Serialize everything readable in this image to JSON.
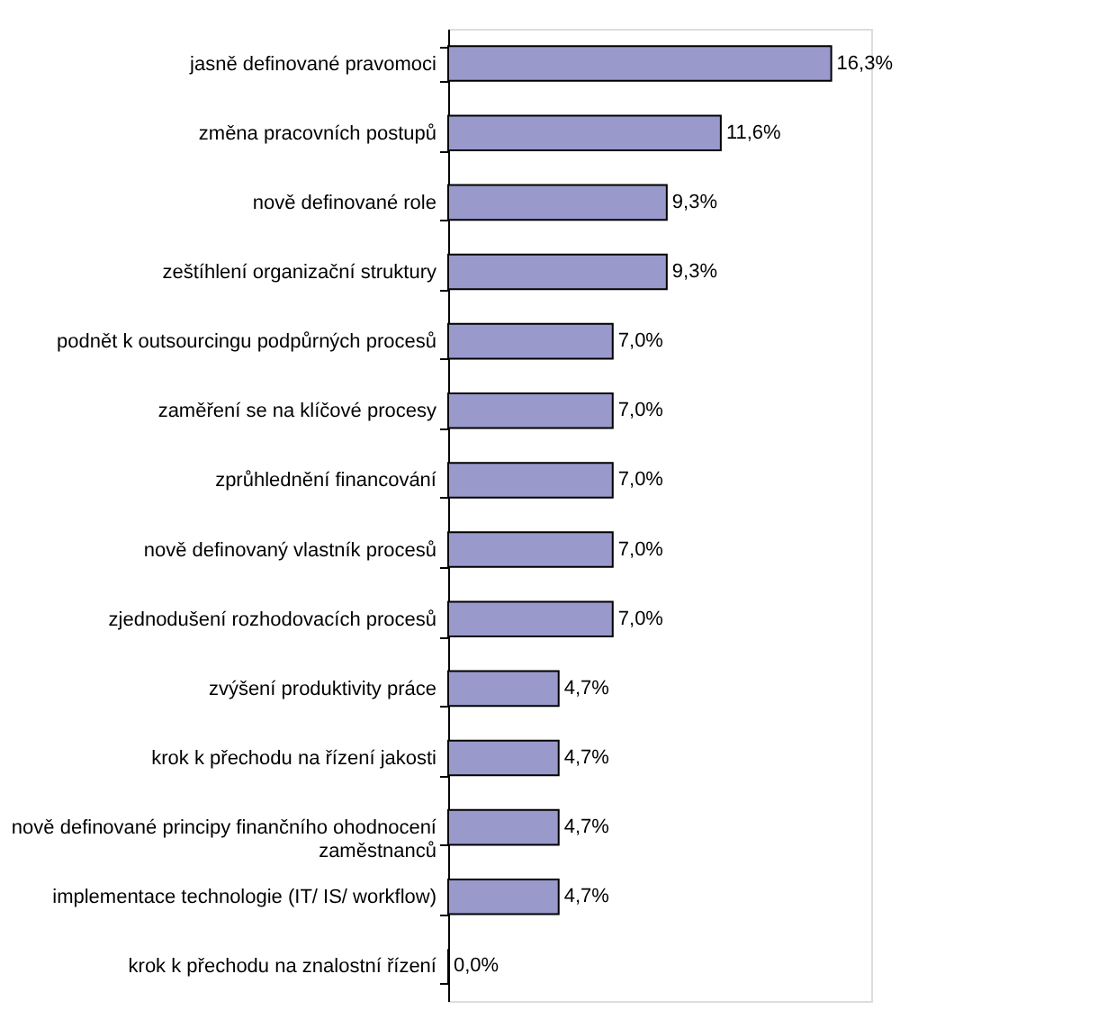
{
  "chart_data": {
    "type": "bar",
    "orientation": "horizontal",
    "categories": [
      "jasně definované pravomoci",
      "změna pracovních postupů",
      "nově definované role",
      "zeštíhlení organizační struktury",
      "podnět k outsourcingu podpůrných procesů",
      "zaměření se na klíčové procesy",
      "zprůhlednění financování",
      "nově definovaný vlastník procesů",
      "zjednodušení rozhodovacích procesů",
      "zvýšení produktivity práce",
      "krok k přechodu na řízení jakosti",
      "nově definované principy finančního ohodnocení zaměstnanců",
      "implementace technologie (IT/ IS/ workflow)",
      "krok k přechodu na znalostní řízení"
    ],
    "values": [
      16.3,
      11.6,
      9.3,
      9.3,
      7.0,
      7.0,
      7.0,
      7.0,
      7.0,
      4.7,
      4.7,
      4.7,
      4.7,
      0.0
    ],
    "value_labels": [
      "16,3%",
      "11,6%",
      "9,3%",
      "9,3%",
      "7,0%",
      "7,0%",
      "7,0%",
      "7,0%",
      "7,0%",
      "4,7%",
      "4,7%",
      "4,7%",
      "4,7%",
      "0,0%"
    ],
    "color": "#9999cc",
    "tick_labels": "y"
  }
}
